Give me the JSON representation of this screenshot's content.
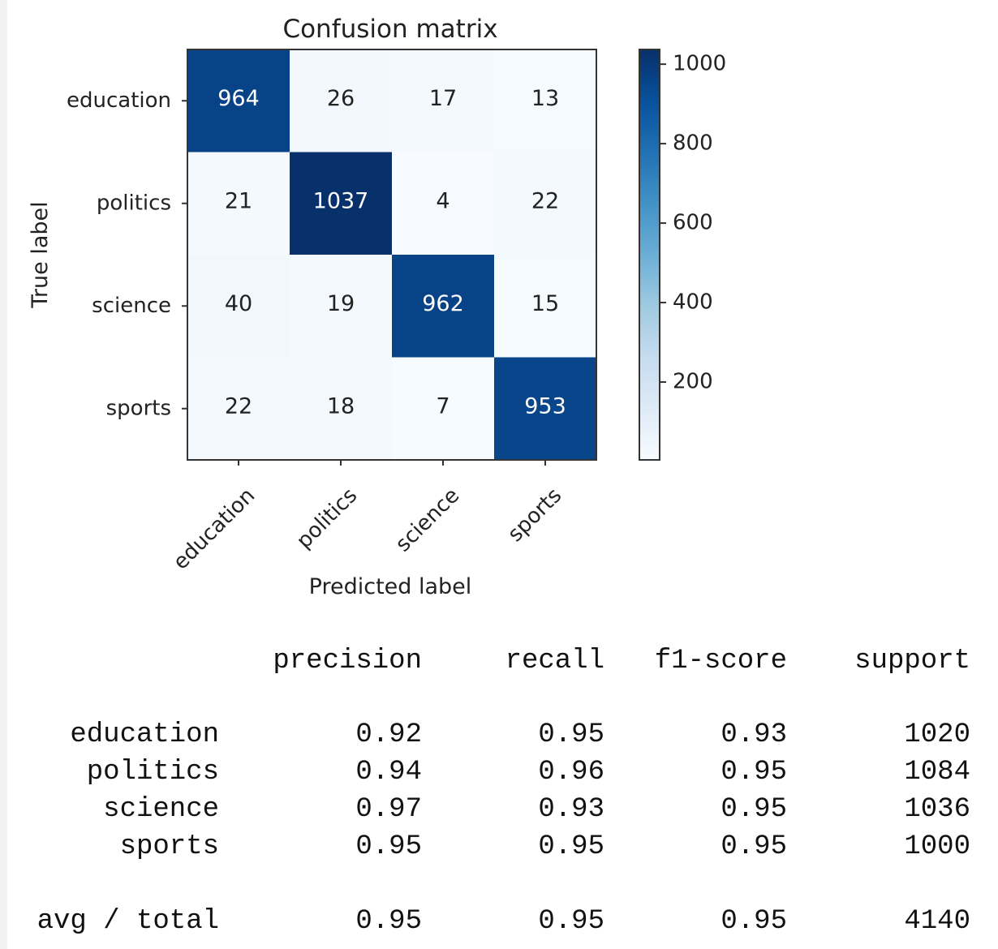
{
  "chart_data": {
    "type": "heatmap",
    "title": "Confusion matrix",
    "xlabel": "Predicted label",
    "ylabel": "True label",
    "x_categories": [
      "education",
      "politics",
      "science",
      "sports"
    ],
    "y_categories": [
      "education",
      "politics",
      "science",
      "sports"
    ],
    "values": [
      [
        964,
        26,
        17,
        13
      ],
      [
        21,
        1037,
        4,
        22
      ],
      [
        40,
        19,
        962,
        15
      ],
      [
        22,
        18,
        7,
        953
      ]
    ],
    "colormap": "Blues",
    "colorbar": {
      "min": 4,
      "max": 1037,
      "ticks": [
        200,
        400,
        600,
        800,
        1000
      ]
    },
    "colors": {
      "low": "#f7fbff",
      "high": "#08306b"
    }
  },
  "report": {
    "headers": [
      "precision",
      "recall",
      "f1-score",
      "support"
    ],
    "rows": [
      {
        "label": "education",
        "precision": "0.92",
        "recall": "0.95",
        "f1": "0.93",
        "support": "1020"
      },
      {
        "label": "politics",
        "precision": "0.94",
        "recall": "0.96",
        "f1": "0.95",
        "support": "1084"
      },
      {
        "label": "science",
        "precision": "0.97",
        "recall": "0.93",
        "f1": "0.95",
        "support": "1036"
      },
      {
        "label": "sports",
        "precision": "0.95",
        "recall": "0.95",
        "f1": "0.95",
        "support": "1000"
      }
    ],
    "total": {
      "label": "avg / total",
      "precision": "0.95",
      "recall": "0.95",
      "f1": "0.95",
      "support": "4140"
    }
  }
}
